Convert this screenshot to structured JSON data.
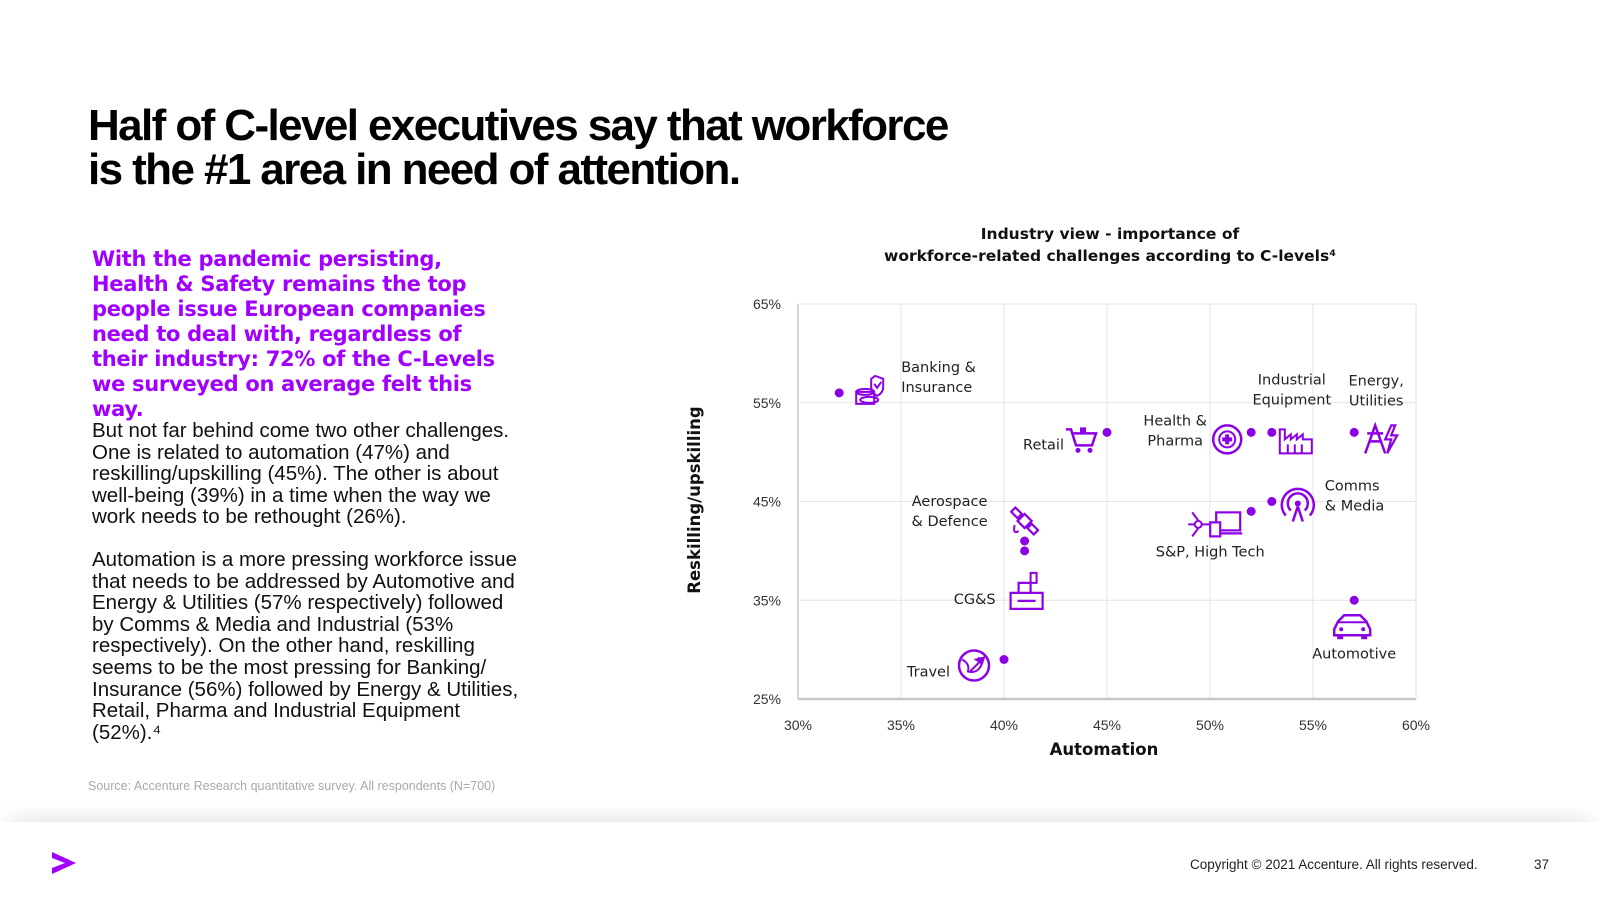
{
  "title": {
    "line1": "Half of C-level executives say that workforce",
    "line2": "is the #1 area in need of attention."
  },
  "highlight_text": "With the pandemic persisting, Health & Safety remains the top people issue European companies need to deal with, regardless of their industry: 72% of the C-Levels we surveyed on average felt this way.",
  "paragraphs": [
    "But not far behind come two other challenges. One is related to automation (47%) and reskilling/upskilling (45%). The other is about well-being (39%) in a time when the way we work needs to be rethought (26%).",
    "Automation is a more pressing workforce issue that needs to be addressed by Automotive and Energy & Utilities (57% respectively) followed by Comms & Media and Industrial (53% respectively). On the other hand, reskilling seems to be the most pressing for Banking/ Insurance (56%) followed by Energy & Utilities, Retail, Pharma and Industrial Equipment (52%).⁴"
  ],
  "source": "Source: Accenture Research quantitative survey. All respondents (N=700)",
  "footer": {
    "copyright": "Copyright © 2021 Accenture. All rights reserved.",
    "page_number": "37"
  },
  "colors": {
    "accent": "#a100ff",
    "point": "#8c00e6",
    "grid": "#e3e3e3",
    "axis": "#c8c8c8"
  },
  "chart_data": {
    "type": "scatter",
    "title_line1": "Industry view - importance of",
    "title_line2": "workforce-related challenges according to C-levels⁴",
    "xlabel": "Automation",
    "ylabel": "Reskilling/upskilling",
    "xlim": [
      0.3,
      0.6
    ],
    "ylim": [
      0.25,
      0.65
    ],
    "x_ticks": [
      "30%",
      "35%",
      "40%",
      "45%",
      "50%",
      "55%",
      "60%"
    ],
    "y_ticks": [
      "25%",
      "35%",
      "45%",
      "55%",
      "65%"
    ],
    "grid": true,
    "points": [
      {
        "name": "Banking & Insurance",
        "label_lines": [
          "Banking &",
          "Insurance"
        ],
        "x": 0.32,
        "y": 0.56,
        "icon": "banking-icon"
      },
      {
        "name": "Retail",
        "label_lines": [
          "Retail"
        ],
        "x": 0.45,
        "y": 0.52,
        "icon": "shopping-cart-icon"
      },
      {
        "name": "Health & Pharma",
        "label_lines": [
          "Health &",
          "Pharma"
        ],
        "x": 0.52,
        "y": 0.52,
        "icon": "health-icon"
      },
      {
        "name": "Industrial Equipment",
        "label_lines": [
          "Industrial",
          "Equipment"
        ],
        "x": 0.53,
        "y": 0.52,
        "icon": "factory-icon"
      },
      {
        "name": "Energy, Utilities",
        "label_lines": [
          "Energy,",
          "Utilities"
        ],
        "x": 0.57,
        "y": 0.52,
        "icon": "power-pylon-icon"
      },
      {
        "name": "Comms & Media",
        "label_lines": [
          "Comms",
          "& Media"
        ],
        "x": 0.53,
        "y": 0.45,
        "icon": "antenna-icon"
      },
      {
        "name": "S&P, High Tech",
        "label_lines": [
          "S&P, High Tech"
        ],
        "x": 0.52,
        "y": 0.44,
        "icon": "high-tech-icon"
      },
      {
        "name": "Aerospace & Defence",
        "label_lines": [
          "Aerospace",
          "& Defence"
        ],
        "x": 0.41,
        "y": 0.41,
        "icon": "satellite-icon"
      },
      {
        "name": "CG&S",
        "label_lines": [
          "CG&S"
        ],
        "x": 0.41,
        "y": 0.4,
        "icon": "consumer-goods-icon"
      },
      {
        "name": "Automotive",
        "label_lines": [
          "Automotive"
        ],
        "x": 0.57,
        "y": 0.35,
        "icon": "car-icon"
      },
      {
        "name": "Travel",
        "label_lines": [
          "Travel"
        ],
        "x": 0.4,
        "y": 0.29,
        "icon": "globe-plane-icon"
      }
    ]
  }
}
